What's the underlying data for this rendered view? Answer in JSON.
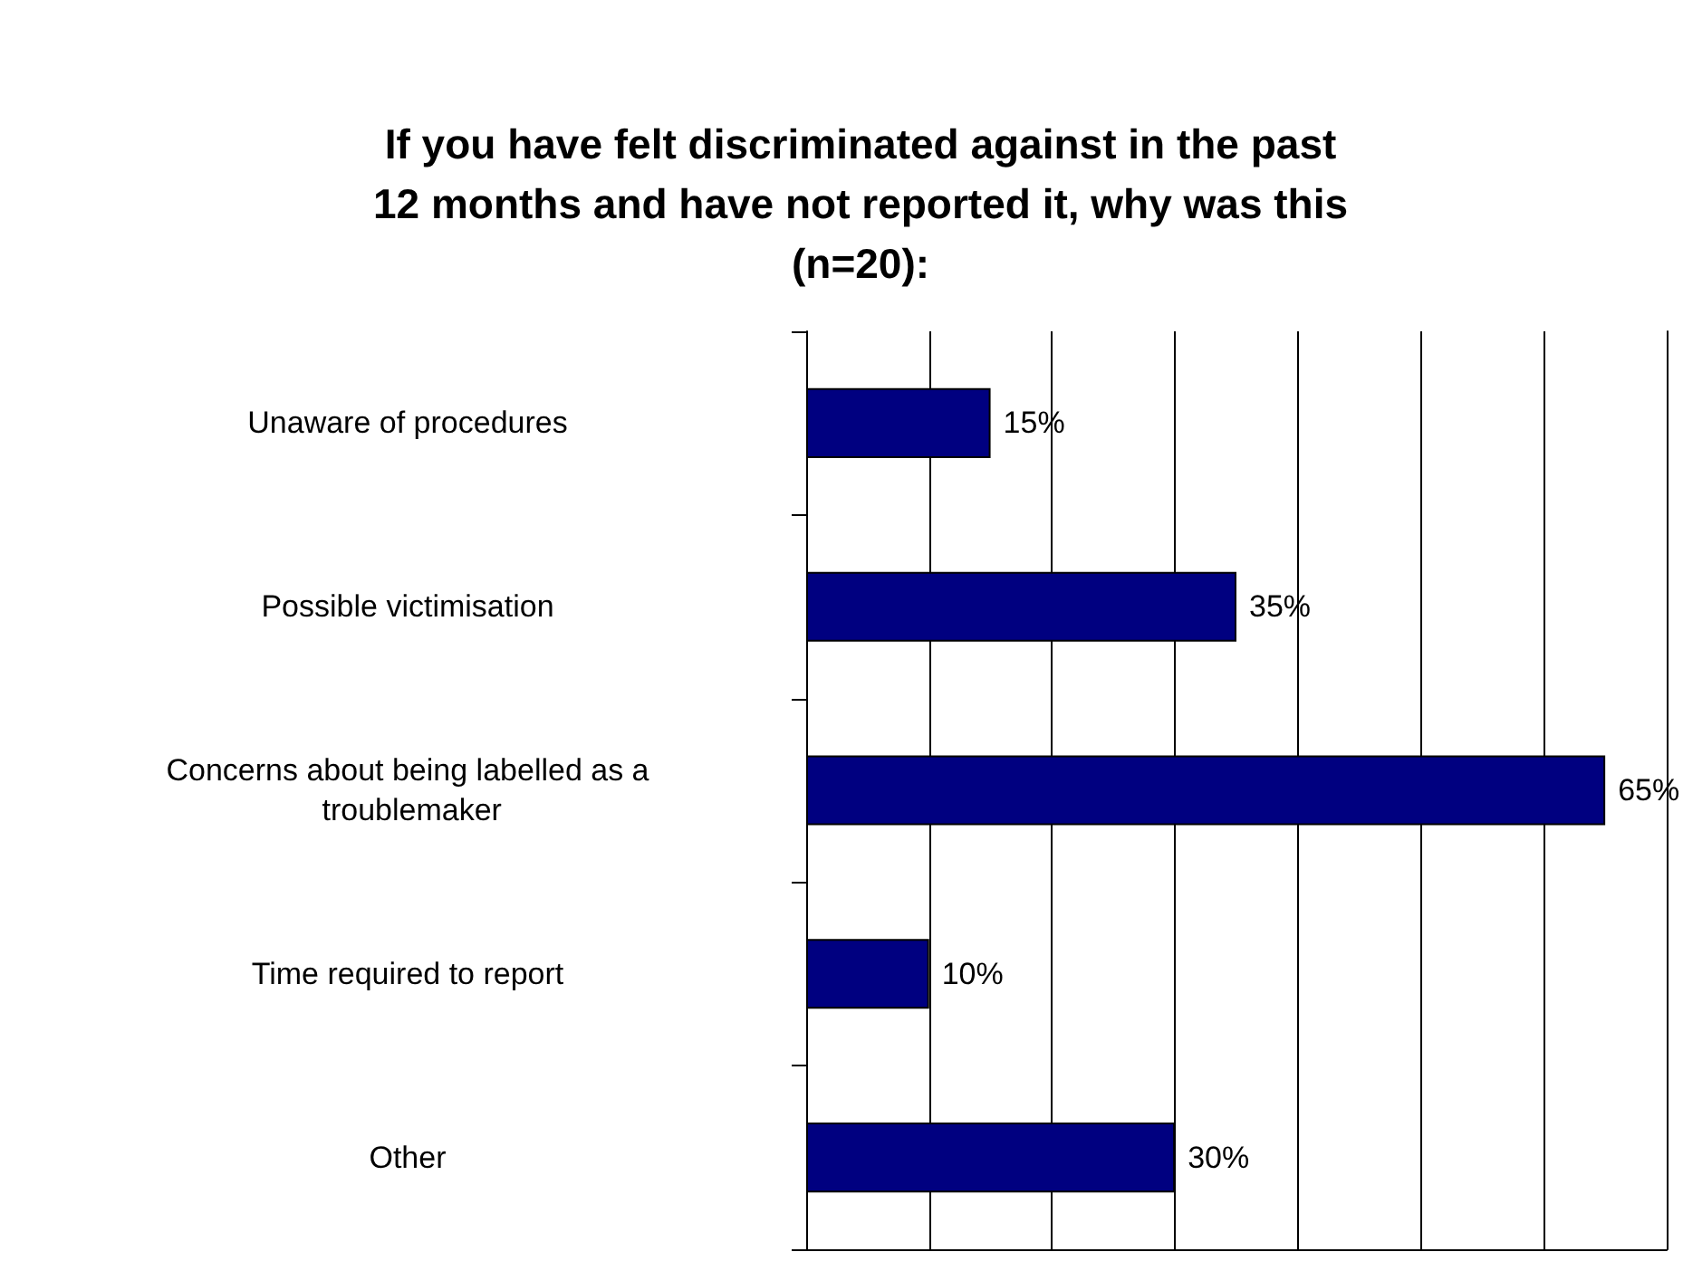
{
  "chart_data": {
    "type": "bar",
    "orientation": "horizontal",
    "title": "If you have felt discriminated against in the past\n12 months and have not reported it, why was this\n(n=20):",
    "categories": [
      "Unaware of procedures",
      "Possible victimisation",
      "Concerns about being labelled as a troublemaker",
      "Time required to report",
      "Other"
    ],
    "values": [
      15,
      35,
      65,
      10,
      30
    ],
    "value_labels": [
      "15%",
      "35%",
      "65%",
      "10%",
      "30%"
    ],
    "color": "#000080",
    "xlim": [
      0,
      70
    ],
    "xticks": [
      {
        "value": 0,
        "label": null
      },
      {
        "value": 10,
        "label": null
      },
      {
        "value": 20,
        "label": null
      },
      {
        "value": 30,
        "label": null
      },
      {
        "value": 40,
        "label": null
      },
      {
        "value": 50,
        "label": null
      },
      {
        "value": 60,
        "label": null
      }
    ],
    "tick_labels": "y",
    "grid": "x"
  }
}
